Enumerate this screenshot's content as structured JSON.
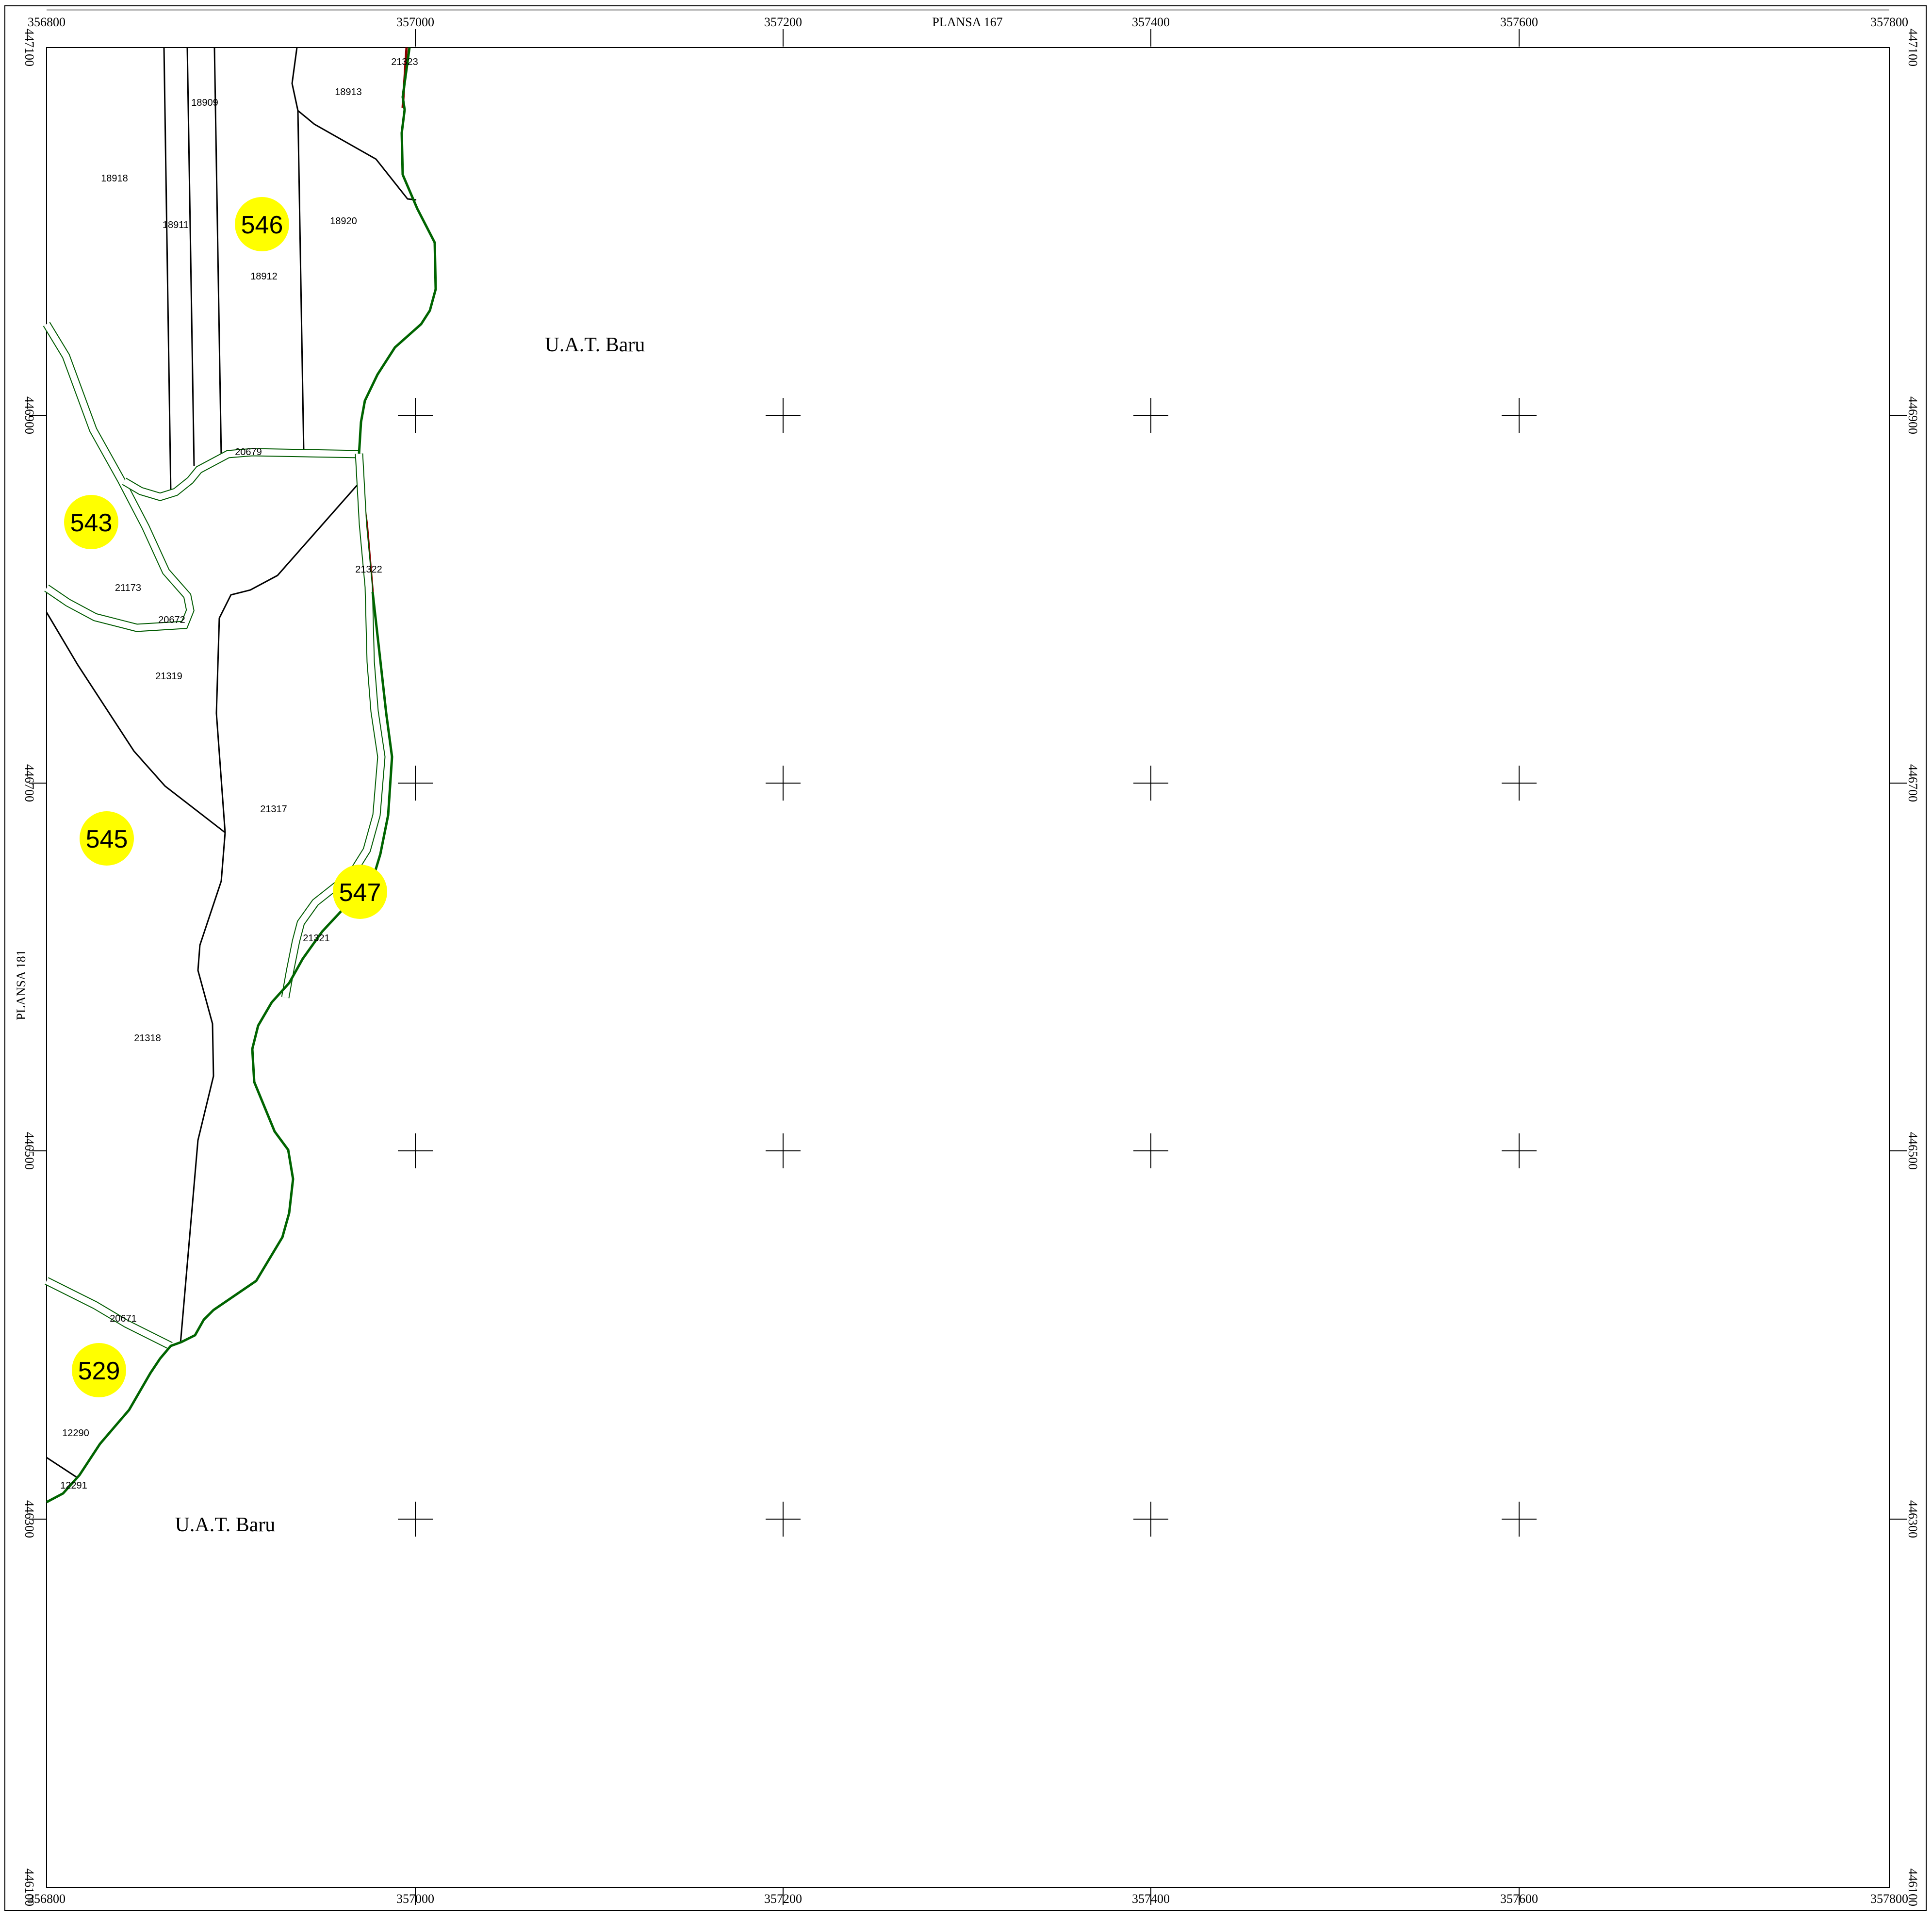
{
  "map": {
    "sheet_top": "PLANSA  167",
    "sheet_left": "PLANSA  181",
    "x_ticks": [
      "356800",
      "357000",
      "357200",
      "357400",
      "357600",
      "357800"
    ],
    "y_ticks": [
      "447100",
      "446900",
      "446700",
      "446500",
      "446300",
      "446100"
    ],
    "uat_labels": [
      "U.A.T. Baru",
      "U.A.T. Baru"
    ],
    "badges": [
      "546",
      "543",
      "545",
      "547",
      "529"
    ],
    "badge_color": "#ffff00",
    "road_color": "#006400",
    "boundary_color": "#8b0000",
    "parcels": [
      "21323",
      "18909",
      "18913",
      "18918",
      "18911",
      "18920",
      "18912",
      "20679",
      "21322",
      "21173",
      "20672",
      "21319",
      "21317",
      "21321",
      "21318",
      "20671",
      "12290",
      "12291"
    ]
  }
}
